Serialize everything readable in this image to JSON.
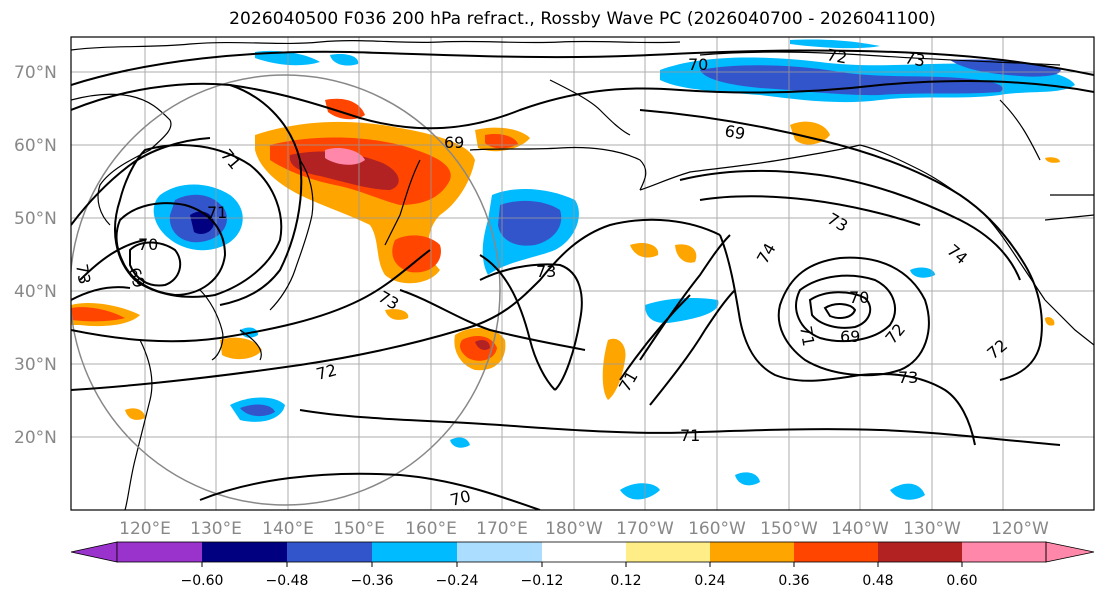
{
  "title": "2026040500 F036 200 hPa refract., Rossby Wave PC (2026040700 - 2026041100)",
  "map": {
    "lat_labels": [
      "70°N",
      "60°N",
      "50°N",
      "40°N",
      "30°N",
      "20°N"
    ],
    "lon_labels": [
      "120°E",
      "130°E",
      "140°E",
      "150°E",
      "160°E",
      "170°E",
      "180°W",
      "170°W",
      "160°W",
      "150°W",
      "140°W",
      "130°W",
      "120°W"
    ],
    "contour_labels": [
      {
        "text": "72"
      },
      {
        "text": "73"
      },
      {
        "text": "70"
      },
      {
        "text": "69"
      },
      {
        "text": "69"
      },
      {
        "text": "71"
      },
      {
        "text": "71"
      },
      {
        "text": "70"
      },
      {
        "text": "69"
      },
      {
        "text": "73"
      },
      {
        "text": "73"
      },
      {
        "text": "73"
      },
      {
        "text": "73"
      },
      {
        "text": "74"
      },
      {
        "text": "74"
      },
      {
        "text": "70"
      },
      {
        "text": "69"
      },
      {
        "text": "71"
      },
      {
        "text": "72"
      },
      {
        "text": "72"
      },
      {
        "text": "73"
      },
      {
        "text": "72"
      },
      {
        "text": "71"
      },
      {
        "text": "71"
      },
      {
        "text": "70"
      }
    ]
  },
  "colorbar": {
    "tick_labels": [
      "−0.60",
      "−0.48",
      "−0.36",
      "−0.24",
      "−0.12",
      "0.12",
      "0.24",
      "0.36",
      "0.48",
      "0.60"
    ],
    "colors": [
      "#9933cc",
      "#000080",
      "#3355cc",
      "#00bbff",
      "#aaddff",
      "#ffffff",
      "#ffee88",
      "#ffa500",
      "#ff4500",
      "#b22222",
      "#ff88aa"
    ]
  }
}
